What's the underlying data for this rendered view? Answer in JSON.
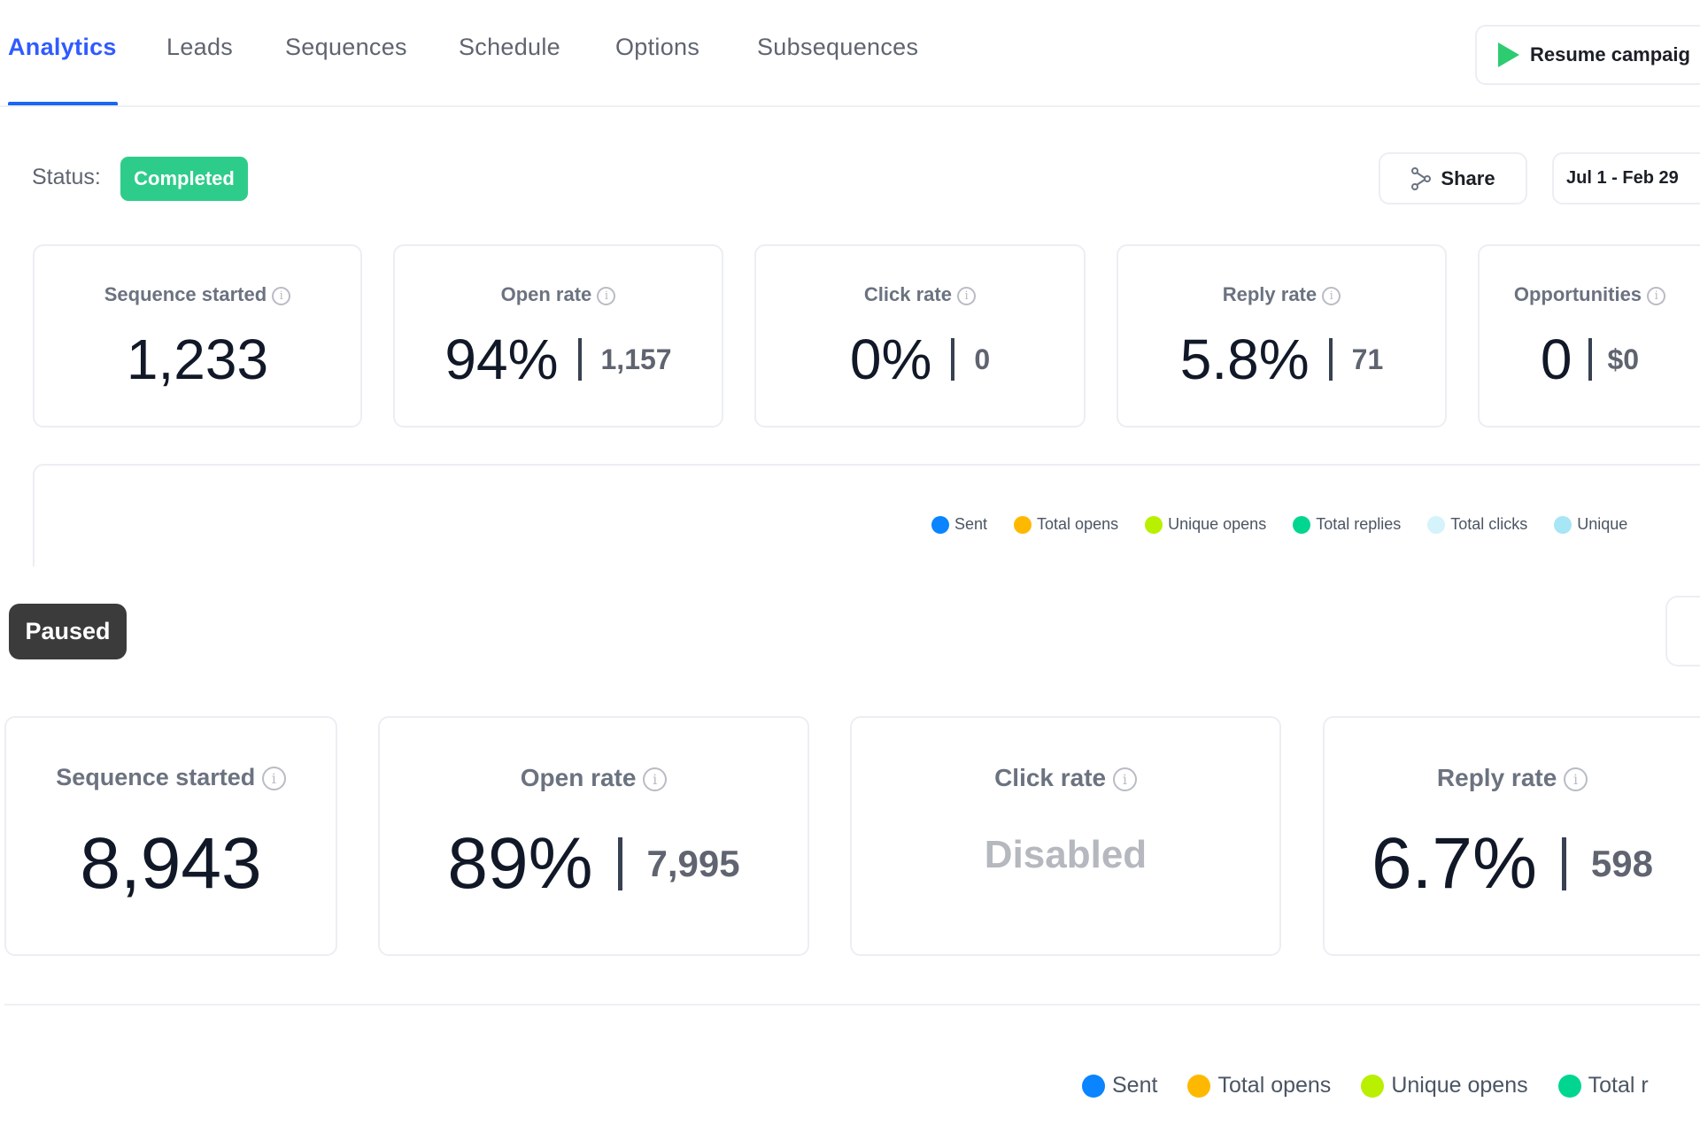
{
  "tabs": [
    {
      "label": "Analytics",
      "active": true
    },
    {
      "label": "Leads"
    },
    {
      "label": "Sequences"
    },
    {
      "label": "Schedule"
    },
    {
      "label": "Options"
    },
    {
      "label": "Subsequences"
    }
  ],
  "resume_button": {
    "label": "Resume campaig",
    "icon": "play-icon",
    "icon_color": "#2ecc71"
  },
  "status": {
    "label": "Status:",
    "badge": "Completed",
    "badge_color": "#2ecc8a"
  },
  "share_button": {
    "label": "Share",
    "icon": "share-icon"
  },
  "date_range": {
    "label": "Jul 1 - Feb 29"
  },
  "cards_top": [
    {
      "title": "Sequence started",
      "value": "1,233"
    },
    {
      "title": "Open rate",
      "value": "94%",
      "secondary": "1,157"
    },
    {
      "title": "Click rate",
      "value": "0%",
      "secondary": "0"
    },
    {
      "title": "Reply rate",
      "value": "5.8%",
      "secondary": "71"
    },
    {
      "title": "Opportunities",
      "value": "0",
      "secondary": "$0"
    }
  ],
  "legend_top": [
    {
      "label": "Sent",
      "color": "#0a84ff"
    },
    {
      "label": "Total opens",
      "color": "#ffb800"
    },
    {
      "label": "Unique opens",
      "color": "#b8f000"
    },
    {
      "label": "Total replies",
      "color": "#00d68f"
    },
    {
      "label": "Total clicks",
      "color": "#d4f3fb"
    },
    {
      "label": "Unique",
      "color": "#a6e6f5"
    }
  ],
  "paused_badge": {
    "label": "Paused",
    "color": "#3b3b3b"
  },
  "cards_bottom": [
    {
      "title": "Sequence started",
      "value": "8,943"
    },
    {
      "title": "Open rate",
      "value": "89%",
      "secondary": "7,995"
    },
    {
      "title": "Click rate",
      "value": "Disabled"
    },
    {
      "title": "Reply rate",
      "value": "6.7%",
      "secondary": "598"
    }
  ],
  "legend_bottom": [
    {
      "label": "Sent",
      "color": "#0a84ff"
    },
    {
      "label": "Total opens",
      "color": "#ffb800"
    },
    {
      "label": "Unique opens",
      "color": "#b8f000"
    },
    {
      "label": "Total r",
      "color": "#00d68f"
    }
  ]
}
